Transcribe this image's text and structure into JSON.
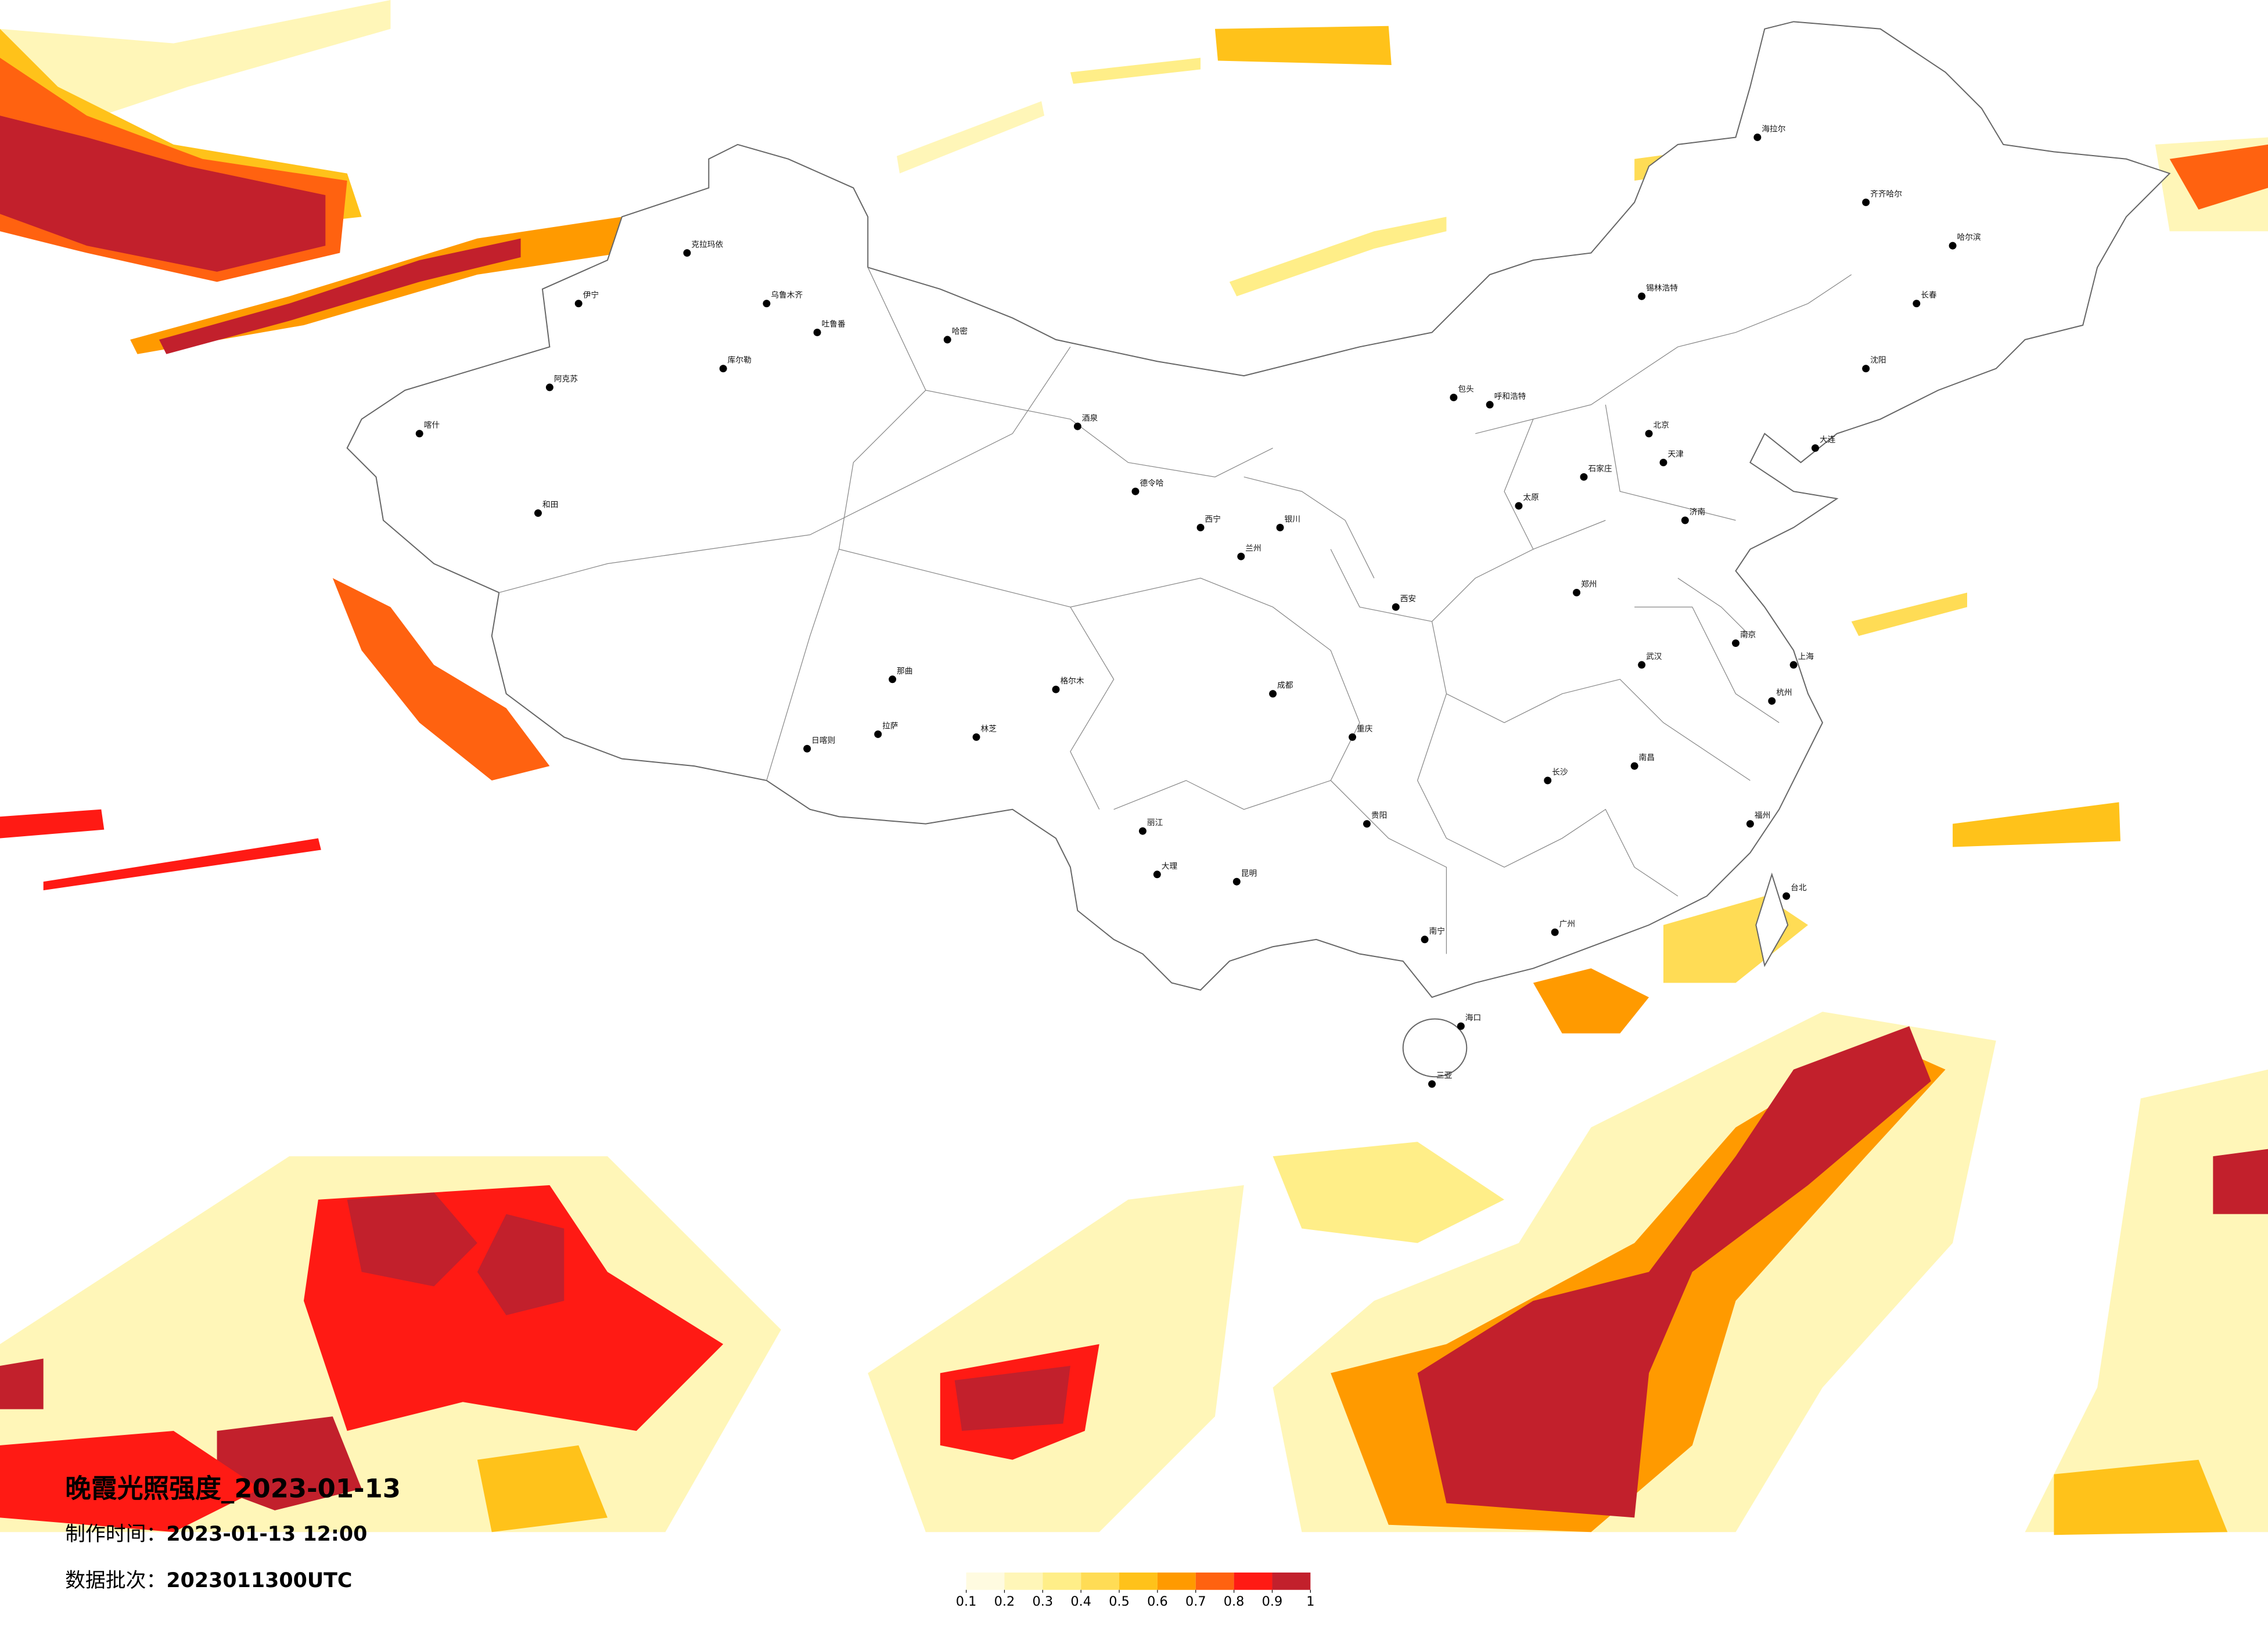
{
  "title": "晚霞光照强度_2023-01-13",
  "production_time": {
    "label": "制作时间：",
    "value": "2023-01-13 12:00"
  },
  "data_batch": {
    "label": "数据批次：",
    "value": "2023011300UTC"
  },
  "colorbar": {
    "ticks": [
      0.1,
      0.2,
      0.3,
      0.4,
      0.5,
      0.6,
      0.7,
      0.8,
      0.9,
      1
    ],
    "colors": [
      "#fffbe0",
      "#fff6b8",
      "#ffee88",
      "#ffdc55",
      "#ffc21a",
      "#ff9a00",
      "#ff6210",
      "#ff1a14",
      "#c2202c"
    ]
  },
  "cities": [
    "乌鲁木齐",
    "克拉玛依",
    "喀什",
    "和田",
    "哈密",
    "库尔勒",
    "伊宁",
    "阿克苏",
    "吐鲁番",
    "拉萨",
    "日喀则",
    "林芝",
    "那曲",
    "格尔木",
    "西宁",
    "兰州",
    "银川",
    "呼和浩特",
    "北京",
    "天津",
    "石家庄",
    "太原",
    "济南",
    "郑州",
    "西安",
    "成都",
    "重庆",
    "武汉",
    "南京",
    "上海",
    "杭州",
    "长沙",
    "南昌",
    "福州",
    "广州",
    "南宁",
    "昆明",
    "贵阳",
    "海口",
    "三亚",
    "哈尔滨",
    "长春",
    "沈阳",
    "大连",
    "台北",
    "齐齐哈尔",
    "海拉尔",
    "锡林浩特",
    "包头",
    "大理",
    "丽江",
    "德令哈",
    "酒泉"
  ]
}
